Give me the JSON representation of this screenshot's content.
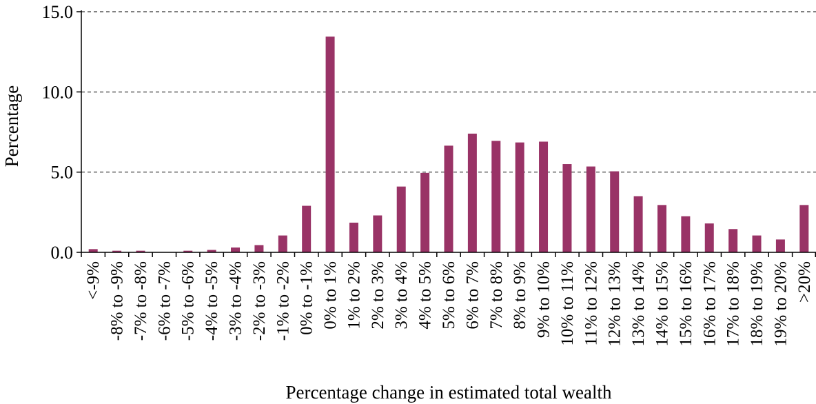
{
  "chart_data": {
    "type": "bar",
    "title": "",
    "xlabel": "Percentage change in estimated total wealth",
    "ylabel": "Percentage",
    "ylim": [
      0,
      15
    ],
    "yticks": [
      "0.0",
      "5.0",
      "10.0",
      "15.0"
    ],
    "ytick_values": [
      0,
      5,
      10,
      15
    ],
    "grid": "horizontal dashed",
    "legend": "none",
    "bar_color": "#993366",
    "categories": [
      "<-9%",
      "-8% to -9%",
      "-7% to -8%",
      "-6% to -7%",
      "-5% to -6%",
      "-4% to -5%",
      "-3% to -4%",
      "-2% to -3%",
      "-1% to -2%",
      "0% to -1%",
      "0% to 1%",
      "1% to 2%",
      "2% to 3%",
      "3% to 4%",
      "4% to 5%",
      "5% to 6%",
      "6% to 7%",
      "7% to 8%",
      "8% to 9%",
      "9% to 10%",
      "10% to 11%",
      "11% to 12%",
      "12% to 13%",
      "13% to 14%",
      "14% to 15%",
      "15% to 16%",
      "16% to 17%",
      "17% to 18%",
      "18% to 19%",
      "19% to 20%",
      ">20%"
    ],
    "values": [
      0.2,
      0.1,
      0.1,
      0.0,
      0.1,
      0.15,
      0.3,
      0.45,
      1.05,
      2.9,
      13.45,
      1.85,
      2.3,
      4.1,
      4.95,
      6.65,
      7.4,
      6.95,
      6.85,
      6.9,
      5.5,
      5.35,
      5.05,
      3.5,
      2.95,
      2.25,
      1.8,
      1.45,
      1.05,
      0.8,
      2.95
    ]
  }
}
